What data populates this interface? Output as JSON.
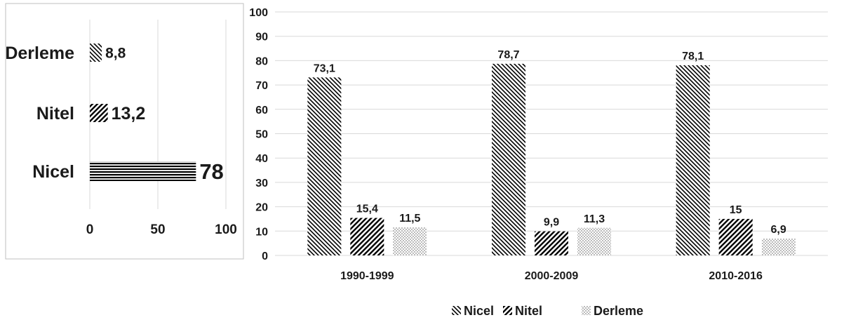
{
  "colors": {
    "ink": "#000000",
    "grid": "#d9d9d9",
    "text": "#1a1a1a",
    "frame": "#bfbfbf"
  },
  "chart_data": [
    {
      "type": "bar",
      "orientation": "horizontal",
      "categories": [
        "Derleme",
        "Nitel",
        "Nicel"
      ],
      "values": [
        8.8,
        13.2,
        78
      ],
      "data_labels": [
        "8,8",
        "13,2",
        "78"
      ],
      "patterns": [
        "diag-down",
        "diag-up",
        "horizontal"
      ],
      "xlim": [
        0,
        100
      ],
      "x_ticks": [
        "0",
        "50",
        "100"
      ],
      "grid": true
    },
    {
      "type": "bar",
      "orientation": "vertical",
      "categories": [
        "1990-1999",
        "2000-2009",
        "2010-2016"
      ],
      "series": [
        {
          "name": "Nicel",
          "values": [
            73.1,
            78.7,
            78.1
          ],
          "labels": [
            "73,1",
            "78,7",
            "78,1"
          ],
          "pattern": "diag-down"
        },
        {
          "name": "Nitel",
          "values": [
            15.4,
            9.9,
            15
          ],
          "labels": [
            "15,4",
            "9,9",
            "15"
          ],
          "pattern": "diag-up"
        },
        {
          "name": "Derleme",
          "values": [
            11.5,
            11.3,
            6.9
          ],
          "labels": [
            "11,5",
            "11,3",
            "6,9"
          ],
          "pattern": "dots"
        }
      ],
      "ylim": [
        0,
        100
      ],
      "y_ticks": [
        "0",
        "10",
        "20",
        "30",
        "40",
        "50",
        "60",
        "70",
        "80",
        "90",
        "100"
      ],
      "legend": "bottom",
      "grid": true
    }
  ]
}
